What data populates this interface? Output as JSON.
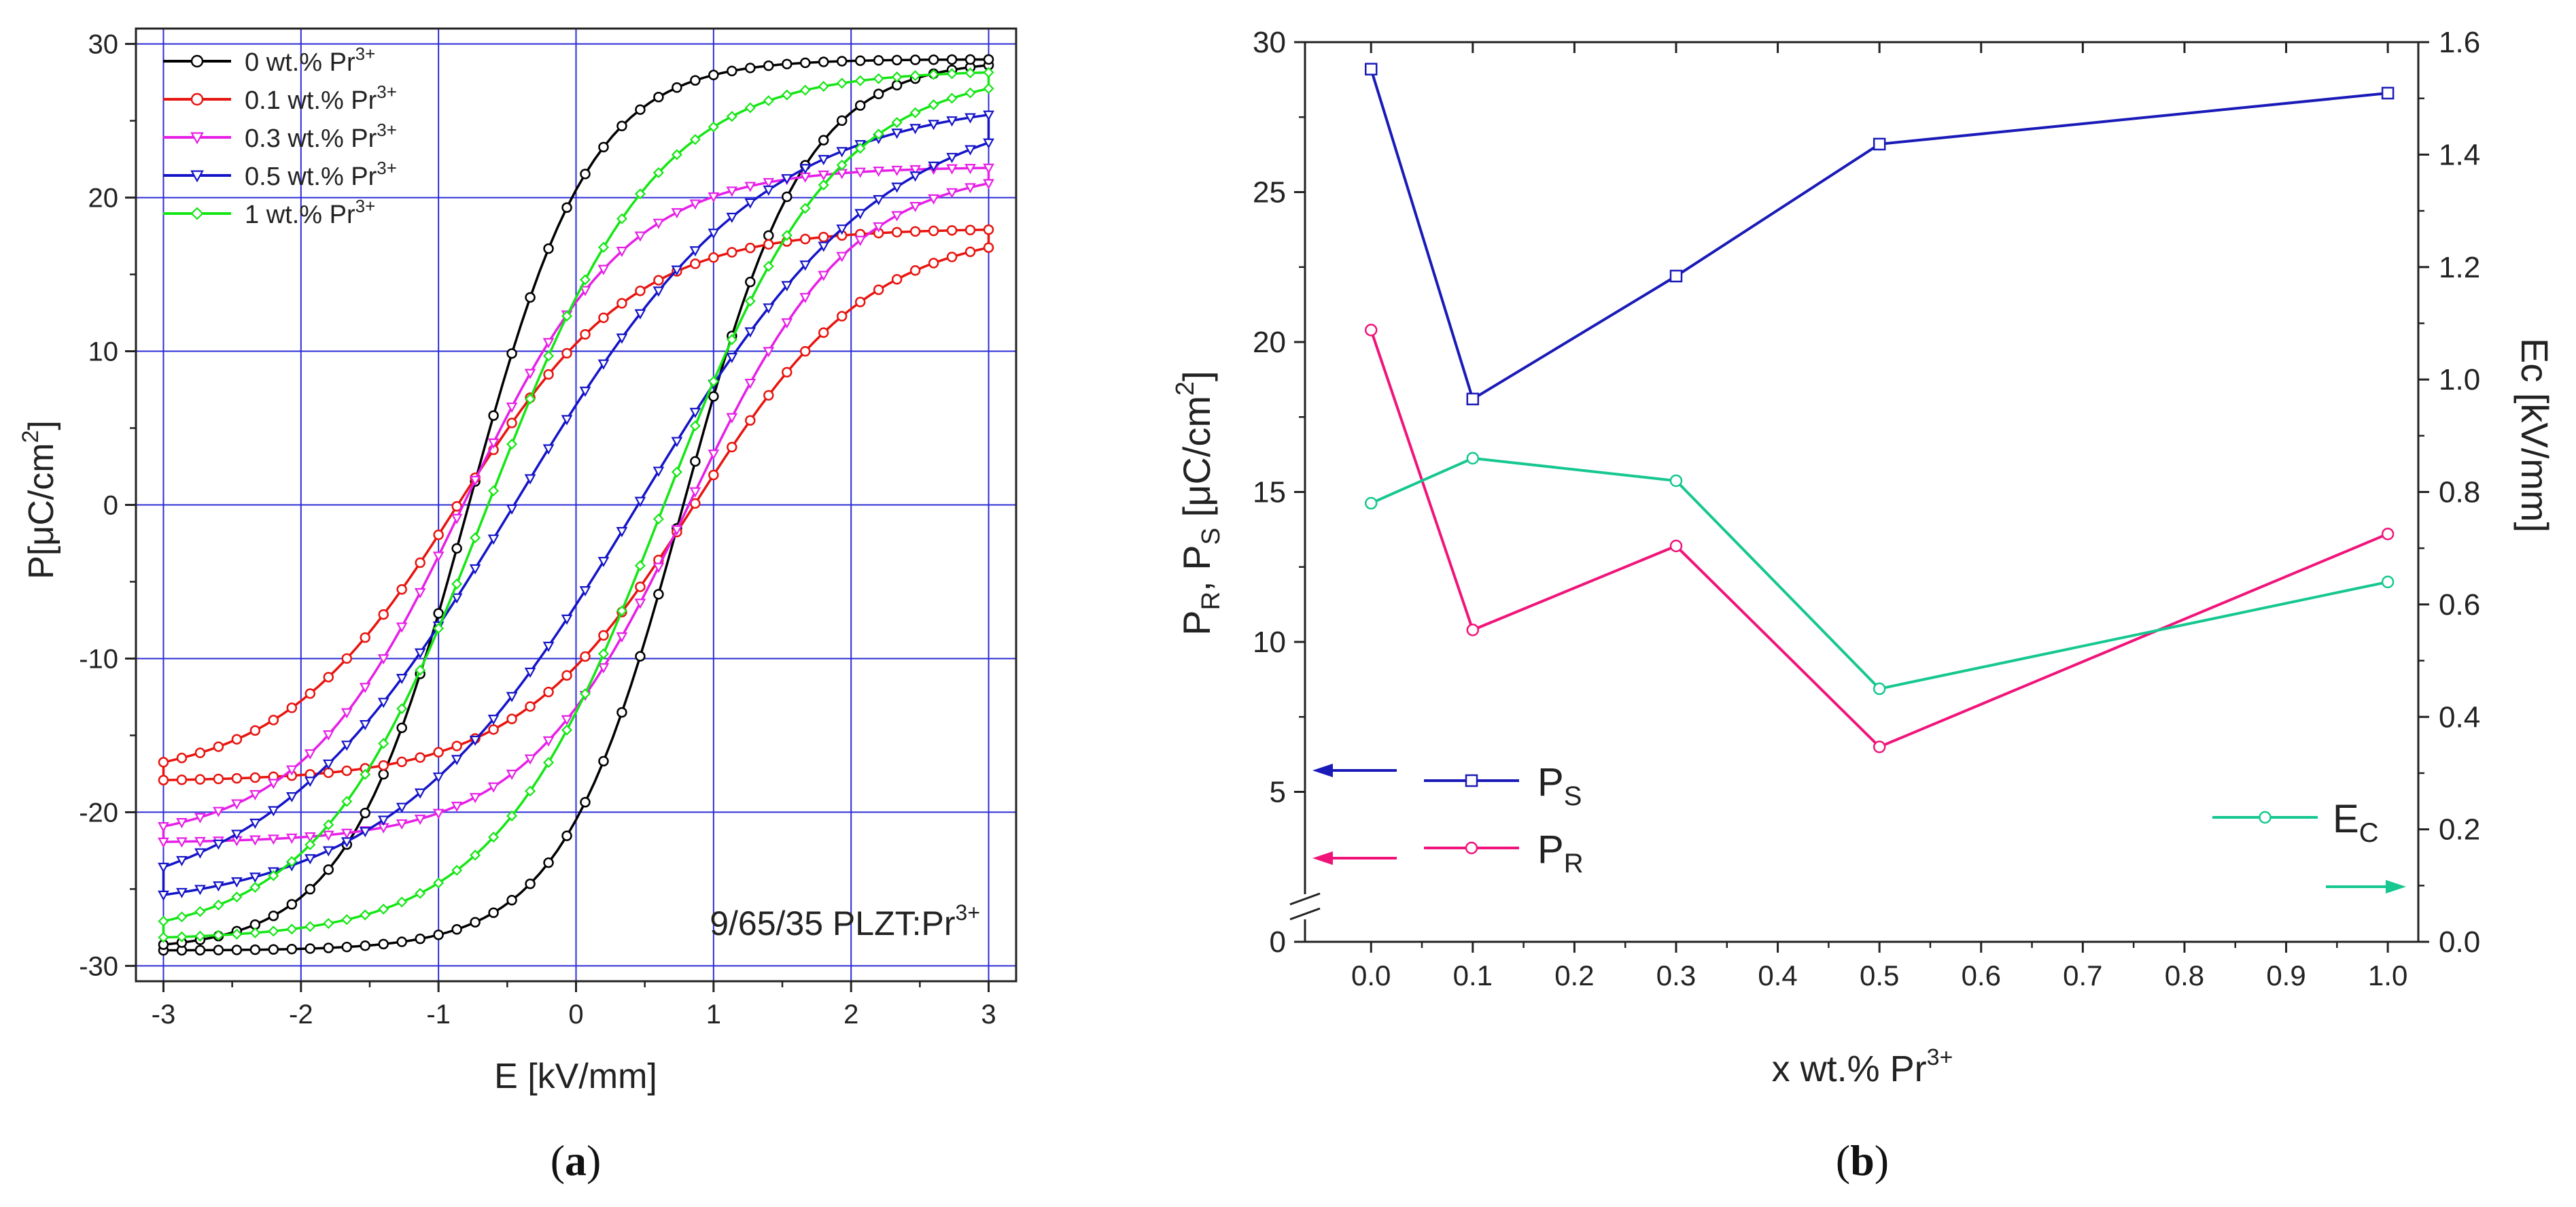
{
  "colors": {
    "axis": "#222222",
    "grid": "#2b2bd6",
    "series_0": "#000000",
    "series_01": "#e8140f",
    "series_03": "#e61fe6",
    "series_05": "#1414c8",
    "series_1": "#14e614",
    "Ps": "#1a1ab8",
    "Pr": "#f0147a",
    "Ec": "#16c78f"
  },
  "chart_data": [
    {
      "id": "a",
      "type": "line",
      "panel_label": "a",
      "annotation": "9/65/35 PLZT:Pr",
      "annotation_sup": "3+",
      "xlabel": "E [kV/mm]",
      "ylabel_pre": "P[μC/cm",
      "ylabel_sup": "2",
      "ylabel_post": "]",
      "xlim": [
        -3.2,
        3.2
      ],
      "ylim": [
        -31,
        31
      ],
      "xticks": [
        -3,
        -2,
        -1,
        0,
        1,
        2,
        3
      ],
      "yticks": [
        -30,
        -20,
        -10,
        0,
        10,
        20,
        30
      ],
      "grid": true,
      "legend_position": "top-left",
      "legend_sup": "3+",
      "series": [
        {
          "name": "0 wt.% Pr",
          "color_key": "series_0",
          "marker": "circle",
          "Ps": 29,
          "Pr": 20.5,
          "Ec": 0.78,
          "w": 0.32
        },
        {
          "name": "0.1 wt.% Pr",
          "color_key": "series_01",
          "marker": "circle",
          "Ps": 18,
          "Pr": 10.5,
          "Ec": 0.86,
          "w": 0.95
        },
        {
          "name": "0.3 wt.% Pr",
          "color_key": "series_03",
          "marker": "triangle-down",
          "Ps": 22,
          "Pr": 13.2,
          "Ec": 0.82,
          "w": 0.85
        },
        {
          "name": "0.5 wt.% Pr",
          "color_key": "series_05",
          "marker": "triangle-down",
          "Ps": 26.5,
          "Pr": 6.5,
          "Ec": 0.45,
          "w": 1.25
        },
        {
          "name": "1 wt.% Pr",
          "color_key": "series_1",
          "marker": "diamond",
          "Ps": 28.3,
          "Pr": 13.5,
          "Ec": 0.64,
          "w": 0.62
        }
      ]
    },
    {
      "id": "b",
      "type": "line",
      "panel_label": "b",
      "xlabel": "x wt.% Pr",
      "xlabel_sup": "3+",
      "ylabel_left_pre": "P",
      "ylabel_left_sub1": "R",
      "ylabel_left_mid": ", P",
      "ylabel_left_sub2": "S",
      "ylabel_left_unit": " [μC/cm",
      "ylabel_left_sup": "2",
      "ylabel_left_post": "]",
      "ylabel_right": "Ec [kV/mm]",
      "xlim": [
        -0.065,
        1.03
      ],
      "ylim_left": [
        0,
        30
      ],
      "ylim_right": [
        0,
        1.6
      ],
      "xticks": [
        0.0,
        0.1,
        0.2,
        0.3,
        0.4,
        0.5,
        0.6,
        0.7,
        0.8,
        0.9,
        1.0
      ],
      "xtick_labels": [
        "0.0",
        "0.1",
        "0.2",
        "0.3",
        "0.4",
        "0.5",
        "0.6",
        "0.7",
        "0.8",
        "0.9",
        "1.0"
      ],
      "yticks_left": [
        0,
        5,
        10,
        15,
        20,
        25,
        30
      ],
      "yticks_right": [
        0.0,
        0.2,
        0.4,
        0.6,
        0.8,
        1.0,
        1.2,
        1.4,
        1.6
      ],
      "ytick_right_labels": [
        "0.0",
        "0.2",
        "0.4",
        "0.6",
        "0.8",
        "1.0",
        "1.2",
        "1.4",
        "1.6"
      ],
      "axis_break": true,
      "x": [
        0.0,
        0.1,
        0.3,
        0.5,
        1.0
      ],
      "series": [
        {
          "name": "P",
          "sub": "S",
          "axis": "left",
          "color_key": "Ps",
          "marker": "square",
          "values": [
            29.1,
            18.1,
            22.2,
            26.6,
            28.3
          ]
        },
        {
          "name": "P",
          "sub": "R",
          "axis": "left",
          "color_key": "Pr",
          "marker": "circle",
          "values": [
            20.4,
            10.4,
            13.2,
            6.5,
            13.6
          ]
        },
        {
          "name": "E",
          "sub": "C",
          "axis": "right",
          "color_key": "Ec",
          "marker": "circle",
          "values": [
            0.78,
            0.86,
            0.82,
            0.45,
            0.64
          ]
        }
      ]
    }
  ]
}
